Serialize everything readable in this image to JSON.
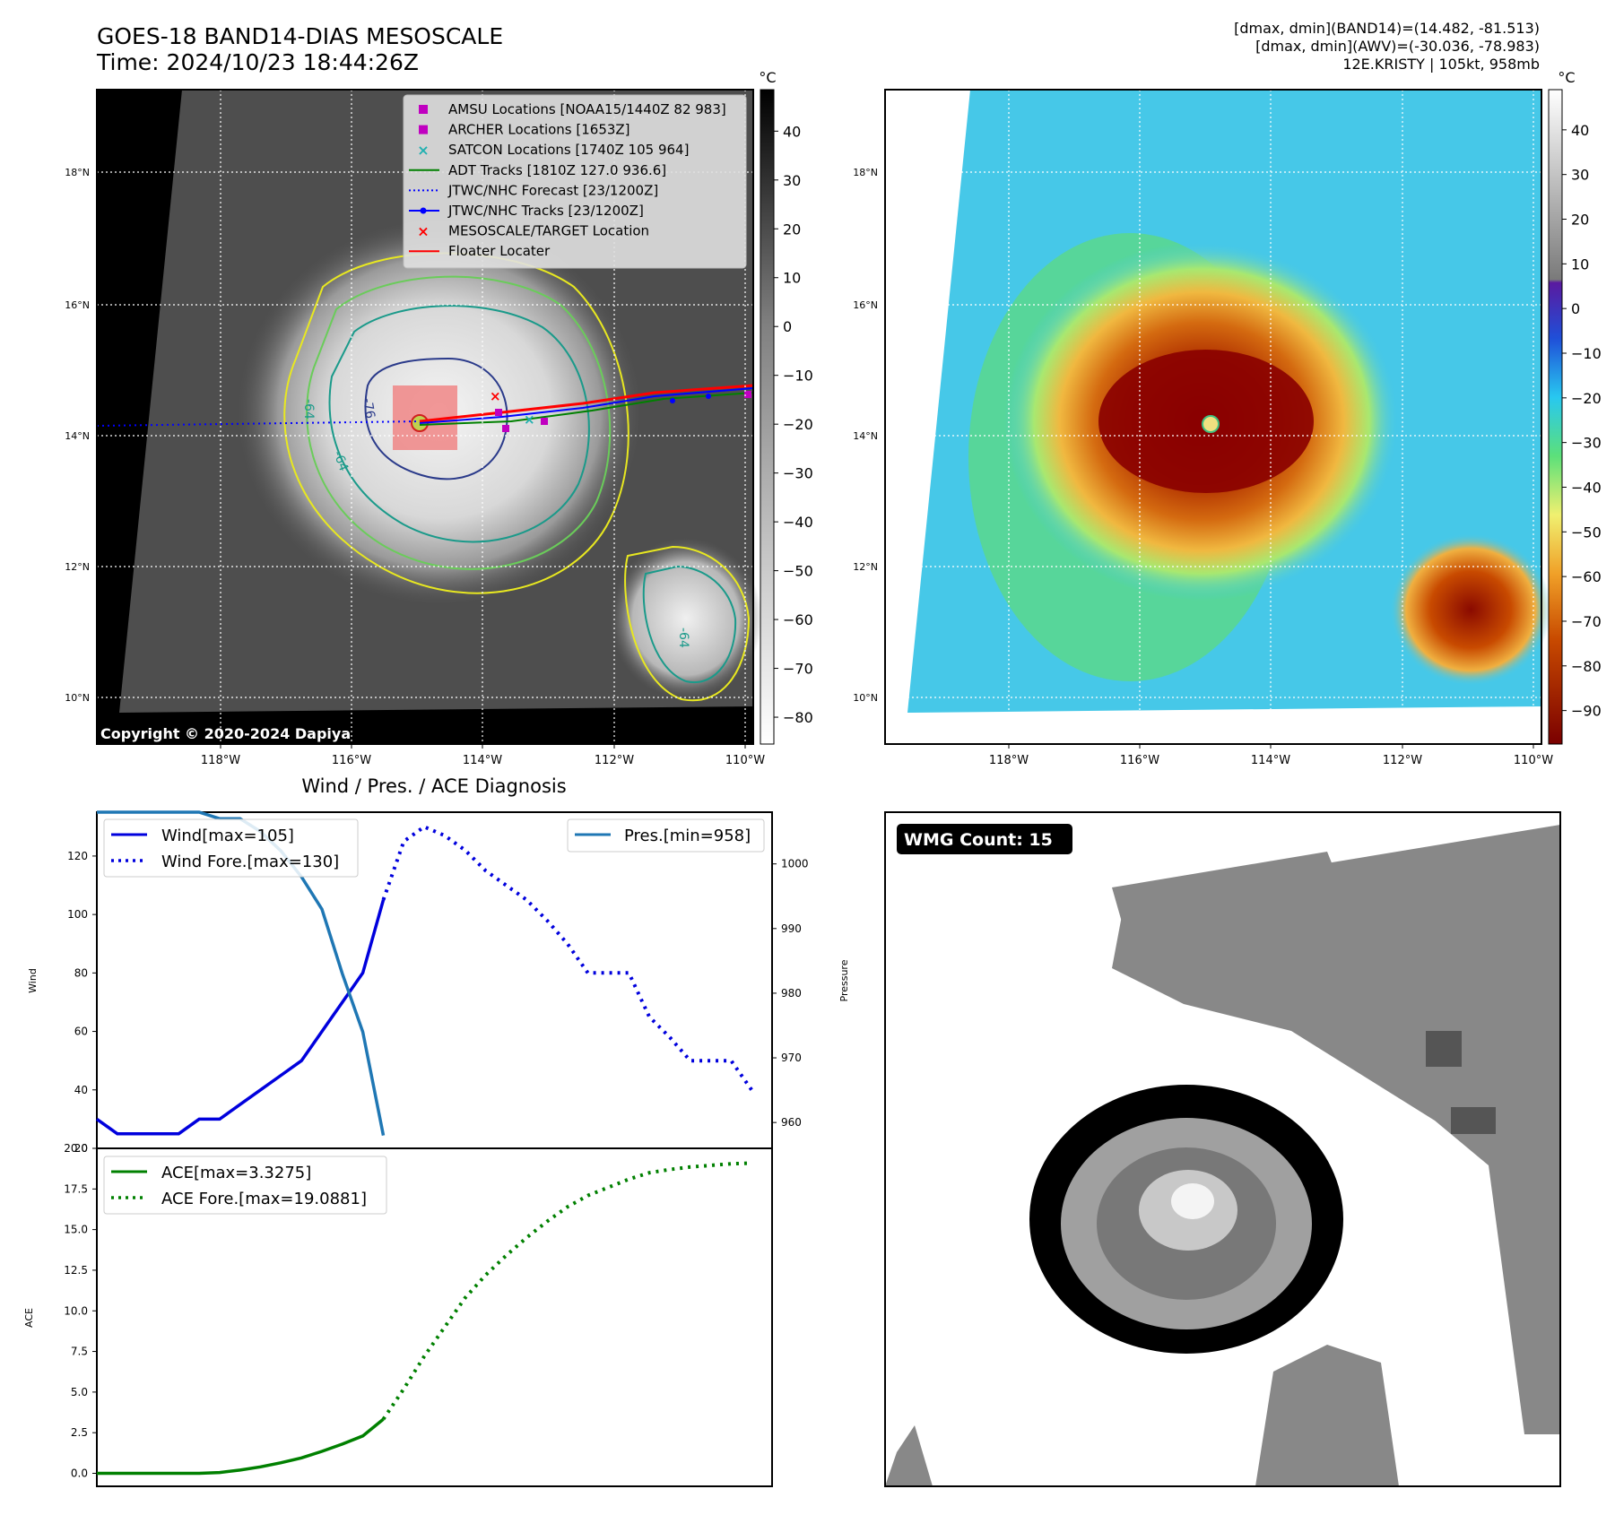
{
  "header": {
    "title": "GOES-18 BAND14-DIAS MESOSCALE",
    "time": "Time: 2024/10/23 18:44:26Z",
    "stat_band14": "[dmax, dmin](BAND14)=(14.482, -81.513)",
    "stat_awv": "[dmax, dmin](AWV)=(-30.036, -78.983)",
    "storm": "12E.KRISTY | 105kt, 958mb"
  },
  "maps": {
    "lat_ticks": [
      "18°N",
      "16°N",
      "14°N",
      "12°N",
      "10°N"
    ],
    "lon_ticks": [
      "118°W",
      "116°W",
      "114°W",
      "112°W",
      "110°W"
    ],
    "copyright": "Copyright © 2020-2024 Dapiya",
    "contour_labels": [
      "-76",
      "-64",
      "-64",
      "-64"
    ]
  },
  "ir_colorbar": {
    "unit": "°C",
    "ticks": [
      "40",
      "30",
      "20",
      "10",
      "0",
      "−10",
      "−20",
      "−30",
      "−40",
      "−50",
      "−60",
      "−70",
      "−80"
    ]
  },
  "awv_colorbar": {
    "unit": "°C",
    "ticks": [
      "40",
      "30",
      "20",
      "10",
      "0",
      "−10",
      "−20",
      "−30",
      "−40",
      "−50",
      "−60",
      "−70",
      "−80",
      "−90"
    ]
  },
  "legend": {
    "items": [
      {
        "label": "AMSU Locations [NOAA15/1440Z 82 983]",
        "color": "#c000c0",
        "marker": "square"
      },
      {
        "label": "ARCHER Locations [1653Z]",
        "color": "#c000c0",
        "marker": "square"
      },
      {
        "label": "SATCON Locations [1740Z 105 964]",
        "color": "#20b0b0",
        "marker": "x"
      },
      {
        "label": "ADT Tracks [1810Z 127.0 936.6]",
        "color": "#008000",
        "marker": "line"
      },
      {
        "label": "JTWC/NHC Forecast [23/1200Z]",
        "color": "#0000ff",
        "marker": "dotted"
      },
      {
        "label": "JTWC/NHC Tracks [23/1200Z]",
        "color": "#0000ff",
        "marker": "line-dot"
      },
      {
        "label": "MESOSCALE/TARGET Location",
        "color": "#ff0000",
        "marker": "x"
      },
      {
        "label": "Floater Locater",
        "color": "#ff0000",
        "marker": "line"
      }
    ]
  },
  "wmg": {
    "label": "WMG Count: 15"
  },
  "chart_data": [
    {
      "type": "line",
      "title": "Wind / Pres. / ACE Diagnosis",
      "ylabel": "Wind",
      "ylabel_right": "Pressure",
      "xlim": [
        0,
        33
      ],
      "ylim": [
        20,
        135
      ],
      "ylim_right": [
        956,
        1008
      ],
      "yticks": [
        20,
        40,
        60,
        80,
        100,
        120
      ],
      "yticks_right": [
        960,
        970,
        980,
        990,
        1000
      ],
      "legend_left": [
        "Wind[max=105]",
        "Wind Fore.[max=130]"
      ],
      "legend_right": [
        "Pres.[min=958]"
      ],
      "series": [
        {
          "name": "Wind[max=105]",
          "axis": "left",
          "style": "solid",
          "color": "#0000dd",
          "x": [
            0,
            1,
            2,
            3,
            4,
            5,
            6,
            7,
            8,
            9,
            10,
            11,
            12,
            13,
            14
          ],
          "y": [
            30,
            25,
            25,
            25,
            25,
            30,
            30,
            35,
            40,
            45,
            50,
            60,
            70,
            80,
            105
          ]
        },
        {
          "name": "Wind Fore.[max=130]",
          "axis": "left",
          "style": "dotted",
          "color": "#0000dd",
          "x": [
            14,
            15,
            16,
            17,
            18,
            19,
            20,
            21,
            22,
            23,
            24,
            25,
            26,
            27,
            28,
            29,
            30,
            31,
            32
          ],
          "y": [
            105,
            125,
            130,
            127,
            122,
            115,
            110,
            105,
            98,
            90,
            80,
            80,
            80,
            65,
            58,
            50,
            50,
            50,
            40
          ]
        },
        {
          "name": "Pres.[min=958]",
          "axis": "right",
          "style": "solid",
          "color": "#1f77b4",
          "x": [
            0,
            1,
            2,
            3,
            4,
            5,
            6,
            7,
            8,
            9,
            10,
            11,
            12,
            13,
            14
          ],
          "y": [
            1008,
            1008,
            1008,
            1008,
            1008,
            1008,
            1007,
            1007,
            1005,
            1002,
            998,
            993,
            983,
            974,
            958
          ]
        }
      ]
    },
    {
      "type": "line",
      "ylabel": "ACE",
      "xlim": [
        0,
        33
      ],
      "ylim": [
        -0.8,
        20
      ],
      "yticks": [
        0.0,
        2.5,
        5.0,
        7.5,
        10.0,
        12.5,
        15.0,
        17.5,
        20.0
      ],
      "ytick_labels": [
        "0.0",
        "2.5",
        "5.0",
        "7.5",
        "10.0",
        "12.5",
        "15.0",
        "17.5",
        "20.0"
      ],
      "legend": [
        "ACE[max=3.3275]",
        "ACE Fore.[max=19.0881]"
      ],
      "series": [
        {
          "name": "ACE[max=3.3275]",
          "style": "solid",
          "color": "#008000",
          "x": [
            0,
            1,
            2,
            3,
            4,
            5,
            6,
            7,
            8,
            9,
            10,
            11,
            12,
            13,
            14
          ],
          "y": [
            0,
            0,
            0,
            0,
            0,
            0,
            0.05,
            0.2,
            0.4,
            0.65,
            0.95,
            1.35,
            1.8,
            2.3,
            3.33
          ]
        },
        {
          "name": "ACE Fore.[max=19.0881]",
          "style": "dotted",
          "color": "#008000",
          "x": [
            14,
            15,
            16,
            17,
            18,
            19,
            20,
            21,
            22,
            23,
            24,
            25,
            26,
            27,
            28,
            29,
            30,
            31,
            32
          ],
          "y": [
            3.33,
            5.2,
            7.2,
            9.0,
            10.8,
            12.2,
            13.4,
            14.5,
            15.5,
            16.4,
            17.1,
            17.6,
            18.1,
            18.5,
            18.7,
            18.85,
            18.95,
            19.05,
            19.09
          ]
        }
      ]
    }
  ]
}
